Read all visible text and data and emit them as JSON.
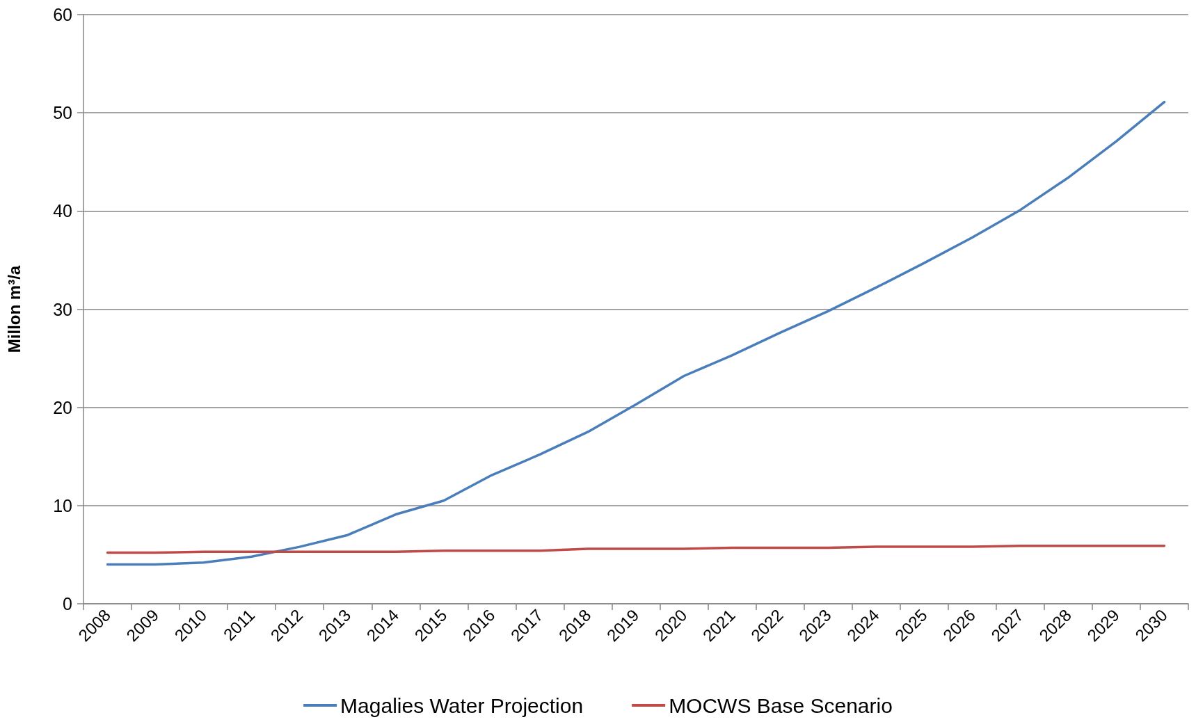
{
  "chart_data": {
    "type": "line",
    "ylabel": "Millon m³/a",
    "categories": [
      "2008",
      "2009",
      "2010",
      "2011",
      "2012",
      "2013",
      "2014",
      "2015",
      "2016",
      "2017",
      "2018",
      "2019",
      "2020",
      "2021",
      "2022",
      "2023",
      "2024",
      "2025",
      "2026",
      "2027",
      "2028",
      "2029",
      "2030"
    ],
    "series": [
      {
        "name": "Magalies Water Projection",
        "color": "#4a7ebb",
        "values": [
          4.0,
          4.0,
          4.2,
          4.8,
          5.8,
          7.0,
          9.1,
          10.5,
          13.1,
          15.2,
          17.5,
          20.3,
          23.2,
          25.3,
          27.6,
          29.8,
          32.2,
          34.7,
          37.3,
          40.1,
          43.4,
          47.1,
          51.1
        ]
      },
      {
        "name": "MOCWS Base Scenario",
        "color": "#be4b48",
        "values": [
          5.2,
          5.2,
          5.3,
          5.3,
          5.3,
          5.3,
          5.3,
          5.4,
          5.4,
          5.4,
          5.6,
          5.6,
          5.6,
          5.7,
          5.7,
          5.7,
          5.8,
          5.8,
          5.8,
          5.9,
          5.9,
          5.9,
          5.9
        ]
      }
    ],
    "ylim": [
      0,
      60
    ],
    "yticks": [
      0,
      10,
      20,
      30,
      40,
      50,
      60
    ],
    "grid": "y",
    "legend": "bottom",
    "marker": "none",
    "line_style": "solid"
  }
}
